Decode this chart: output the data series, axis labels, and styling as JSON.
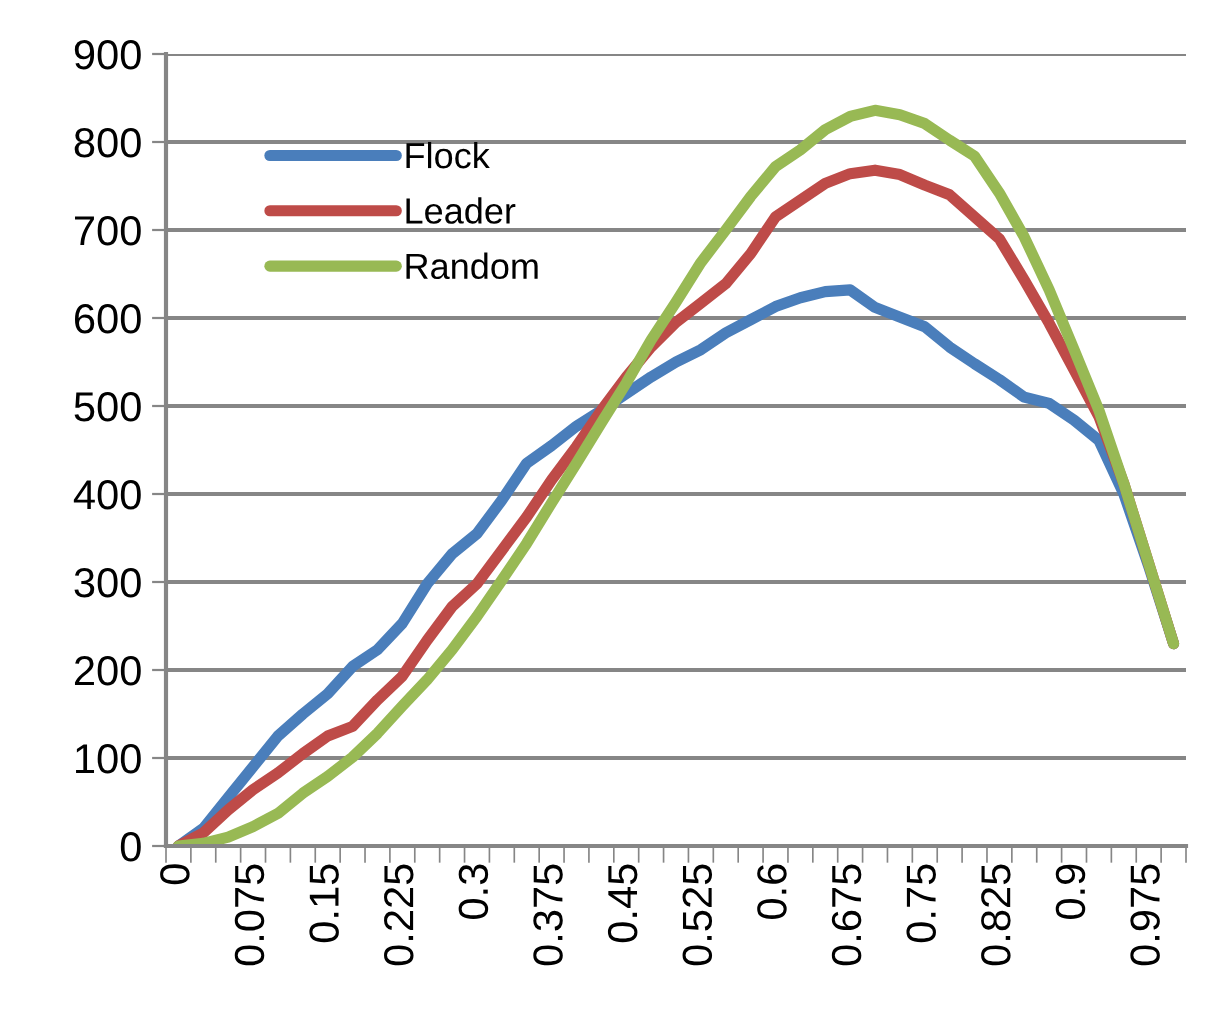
{
  "chart_data": {
    "type": "line",
    "categories": [
      "0",
      null,
      null,
      "0.075",
      null,
      null,
      "0.15",
      null,
      null,
      "0.225",
      null,
      null,
      "0.3",
      null,
      null,
      "0.375",
      null,
      null,
      "0.45",
      null,
      null,
      "0.525",
      null,
      null,
      "0.6",
      null,
      null,
      "0.675",
      null,
      null,
      "0.75",
      null,
      null,
      "0.825",
      null,
      null,
      "0.9",
      null,
      null,
      "0.975",
      null
    ],
    "series": [
      {
        "name": "Flock",
        "color": "#4a7ebb",
        "values": [
          0,
          20,
          55,
          90,
          125,
          150,
          173,
          204,
          223,
          253,
          298,
          332,
          355,
          393,
          435,
          455,
          477,
          495,
          514,
          533,
          550,
          564,
          583,
          598,
          613,
          623,
          630,
          632,
          612,
          601,
          590,
          567,
          548,
          530,
          510,
          503,
          484,
          461,
          400,
          318,
          230
        ]
      },
      {
        "name": "Leader",
        "color": "#be4b48",
        "values": [
          0,
          15,
          41,
          64,
          83,
          105,
          125,
          136,
          166,
          193,
          234,
          272,
          298,
          336,
          374,
          416,
          454,
          495,
          533,
          567,
          595,
          617,
          639,
          673,
          715,
          734,
          753,
          764,
          768,
          763,
          751,
          740,
          715,
          690,
          643,
          594,
          541,
          488,
          412,
          321,
          230
        ]
      },
      {
        "name": "Random",
        "color": "#98b954",
        "values": [
          0,
          3,
          10,
          22,
          37,
          60,
          79,
          101,
          128,
          159,
          189,
          223,
          261,
          302,
          344,
          390,
          435,
          481,
          526,
          575,
          618,
          663,
          700,
          738,
          772,
          791,
          814,
          829,
          836,
          831,
          821,
          802,
          784,
          742,
          692,
          632,
          564,
          495,
          412,
          321,
          230
        ]
      }
    ],
    "ylim": [
      0,
      900
    ],
    "yticks": [
      0,
      100,
      200,
      300,
      400,
      500,
      600,
      700,
      800,
      900
    ],
    "grid": "y",
    "legend": "top left",
    "marker": "none",
    "line_style": "solid"
  }
}
